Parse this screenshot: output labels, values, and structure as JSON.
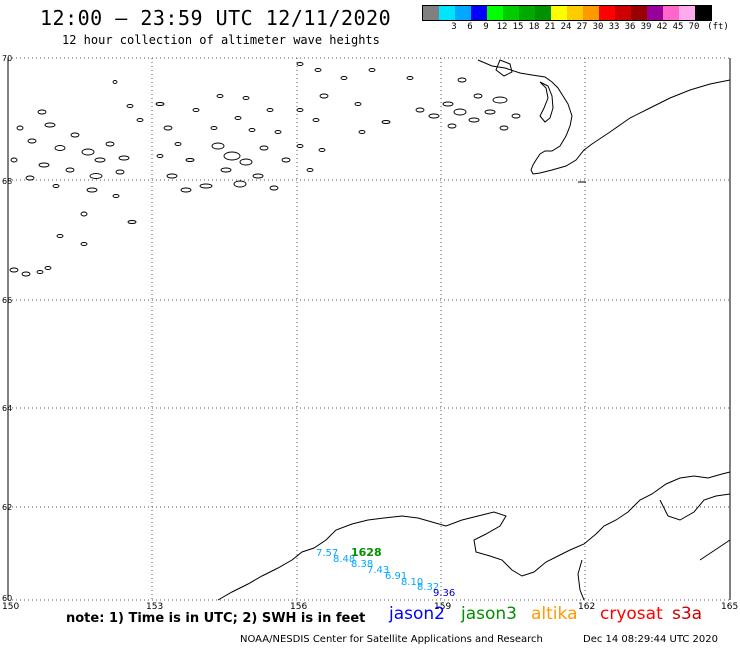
{
  "header": {
    "title": "12:00 – 23:59 UTC 12/11/2020",
    "subtitle": "12 hour collection of altimeter wave heights"
  },
  "color_scale": {
    "unit": "(ft)",
    "swatches": [
      {
        "color": "#808080"
      },
      {
        "color": "#00e5ff",
        "label": "3"
      },
      {
        "color": "#00a8ff",
        "label": "6"
      },
      {
        "color": "#0000ff",
        "label": "9"
      },
      {
        "color": "#00ff00",
        "label": "12"
      },
      {
        "color": "#00cc00",
        "label": "15"
      },
      {
        "color": "#00aa00",
        "label": "18"
      },
      {
        "color": "#009000",
        "label": "21"
      },
      {
        "color": "#ffff00",
        "label": "24"
      },
      {
        "color": "#ffcc00",
        "label": "27"
      },
      {
        "color": "#ff9900",
        "label": "30"
      },
      {
        "color": "#ff0000",
        "label": "33"
      },
      {
        "color": "#cc0000",
        "label": "36"
      },
      {
        "color": "#990000",
        "label": "39"
      },
      {
        "color": "#990099",
        "label": "42"
      },
      {
        "color": "#ff66cc",
        "label": "45"
      },
      {
        "color": "#ffaaee",
        "label": "70"
      },
      {
        "color": "#000000"
      }
    ]
  },
  "map": {
    "lat_labels": [
      "70",
      "68",
      "66",
      "64",
      "62",
      "60"
    ],
    "lon_labels": [
      "150",
      "153",
      "156",
      "159",
      "162",
      "165"
    ],
    "pass_id": {
      "text": "1628",
      "color": "#009000"
    },
    "observations": [
      {
        "text": "7.57",
        "color": "#00a8ff"
      },
      {
        "text": "8.48",
        "color": "#00a8ff"
      },
      {
        "text": "8.38",
        "color": "#00a8ff"
      },
      {
        "text": "7.43",
        "color": "#00a8ff"
      },
      {
        "text": "6.91",
        "color": "#00a8ff"
      },
      {
        "text": "8.10",
        "color": "#00a8ff"
      },
      {
        "text": "8.32",
        "color": "#00a8ff"
      },
      {
        "text": "9.36",
        "color": "#0000cc"
      }
    ]
  },
  "footer": {
    "note": "note: 1) Time is in UTC; 2) SWH is in feet",
    "satellites": [
      {
        "name": "jason2",
        "color": "#0000ff"
      },
      {
        "name": "jason3",
        "color": "#009000"
      },
      {
        "name": "altika",
        "color": "#ff9900"
      },
      {
        "name": "cryosat",
        "color": "#ff0000"
      },
      {
        "name": "s3a",
        "color": "#cc0000"
      }
    ],
    "credit": "NOAA/NESDIS Center for Satellite Applications and Research",
    "timestamp": "Dec 14 08:29:44 UTC 2020"
  }
}
